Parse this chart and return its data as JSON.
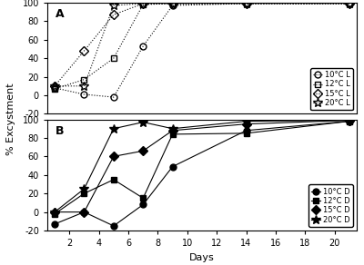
{
  "title_A": "A",
  "title_B": "B",
  "ylabel": "% Excystment",
  "xlabel": "Days",
  "ylim": [
    -20,
    100
  ],
  "xlim": [
    0.5,
    21.5
  ],
  "xticks": [
    2,
    4,
    6,
    8,
    10,
    12,
    14,
    16,
    18,
    20
  ],
  "panel_A": {
    "10C_L": {
      "x": [
        1,
        3,
        5,
        7,
        9,
        14,
        21
      ],
      "y": [
        8,
        1,
        -2,
        53,
        97,
        99,
        99
      ]
    },
    "12C_L": {
      "x": [
        1,
        3,
        5,
        7,
        9,
        14,
        21
      ],
      "y": [
        7,
        17,
        40,
        98,
        99,
        99,
        99
      ]
    },
    "15C_L": {
      "x": [
        1,
        3,
        5,
        7,
        9,
        14,
        21
      ],
      "y": [
        10,
        48,
        87,
        99,
        99,
        99,
        99
      ]
    },
    "20C_L": {
      "x": [
        1,
        3,
        5,
        7,
        9,
        14,
        21
      ],
      "y": [
        10,
        10,
        97,
        99,
        99,
        99,
        99
      ]
    }
  },
  "panel_B": {
    "10C_D": {
      "x": [
        1,
        3,
        5,
        7,
        9,
        14,
        21
      ],
      "y": [
        -13,
        0,
        -15,
        8,
        49,
        88,
        98
      ]
    },
    "12C_D": {
      "x": [
        1,
        3,
        5,
        7,
        9,
        14,
        21
      ],
      "y": [
        -2,
        20,
        35,
        15,
        84,
        85,
        98
      ]
    },
    "15C_D": {
      "x": [
        1,
        3,
        5,
        7,
        9,
        14,
        21
      ],
      "y": [
        0,
        0,
        60,
        66,
        88,
        95,
        99
      ]
    },
    "20C_D": {
      "x": [
        1,
        3,
        5,
        7,
        9,
        14,
        21
      ],
      "y": [
        0,
        25,
        90,
        97,
        90,
        98,
        99
      ]
    }
  },
  "color": "black",
  "linestyle_A": "dotted",
  "linestyle_B": "solid",
  "markers_A": [
    "o",
    "s",
    "D",
    "o"
  ],
  "markers_B": [
    "o",
    "s",
    "D",
    "*"
  ],
  "fillstyle_A": [
    "none",
    "none",
    "none",
    "none"
  ],
  "fillstyle_B": [
    "full",
    "full",
    "full",
    "full"
  ],
  "markersize_A": 5,
  "markersize_B": 5,
  "markersize_star": 7,
  "legend_A": [
    "10°C L",
    "12°C L",
    "15°C L",
    "20°C L"
  ],
  "legend_B": [
    "10°C D",
    "12°C D",
    "15°C D",
    "20°C D"
  ],
  "yticks": [
    -20,
    0,
    20,
    40,
    60,
    80,
    100
  ]
}
